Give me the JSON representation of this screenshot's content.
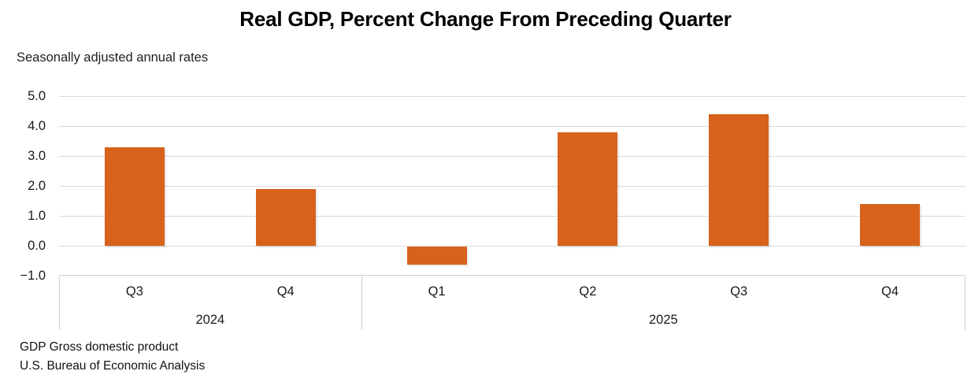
{
  "page": {
    "title": "Real GDP, Percent Change From Preceding Quarter",
    "subtitle": "Seasonally adjusted annual rates",
    "footnotes": [
      "GDP Gross domestic product",
      "U.S. Bureau of Economic Analysis"
    ]
  },
  "chart_data": {
    "type": "bar",
    "title": "Real GDP, Percent Change From Preceding Quarter",
    "subtitle": "Seasonally adjusted annual rates",
    "categories": [
      "Q3",
      "Q4",
      "Q1",
      "Q2",
      "Q3",
      "Q4"
    ],
    "year_groups": [
      {
        "label": "2024",
        "quarters": [
          "Q3",
          "Q4"
        ]
      },
      {
        "label": "2025",
        "quarters": [
          "Q1",
          "Q2",
          "Q3",
          "Q4"
        ]
      }
    ],
    "series": [
      {
        "name": "Real GDP percent change from preceding quarter",
        "values": [
          3.3,
          1.9,
          -0.6,
          3.8,
          4.4,
          1.4
        ]
      }
    ],
    "values": [
      3.3,
      1.9,
      -0.6,
      3.8,
      4.4,
      1.4
    ],
    "xlabel": "",
    "ylabel": "",
    "ylim": [
      -1.0,
      5.0
    ],
    "ytick_interval": 1.0,
    "yticks": [
      "5.0",
      "4.0",
      "3.0",
      "2.0",
      "1.0",
      "0.0",
      "−1.0"
    ],
    "grid": true,
    "legend": "none",
    "bar_color": "#D7621B",
    "gridline_color": "#D9D9D9",
    "axis_color": "#D0D0D0",
    "text_color": "#1A1A1A"
  }
}
